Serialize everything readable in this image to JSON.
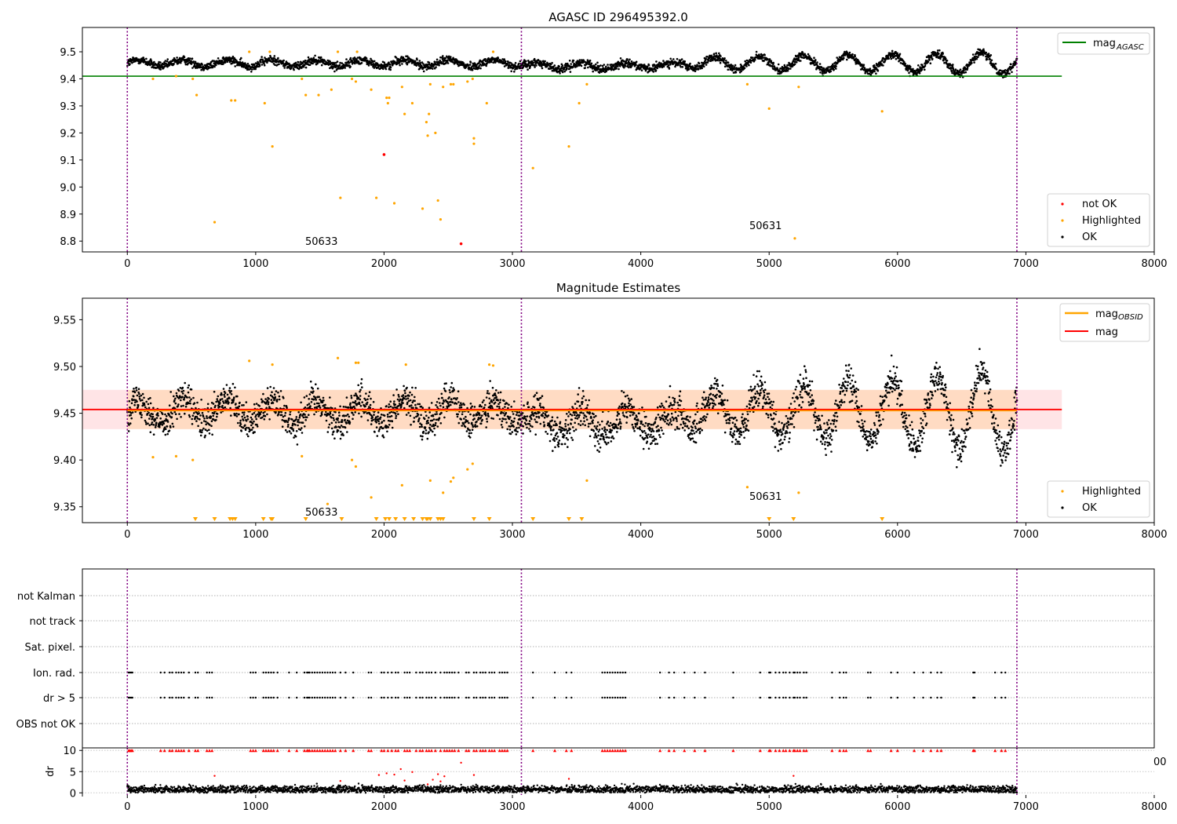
{
  "chart_data": [
    {
      "type": "scatter",
      "title": "AGASC ID 296495392.0",
      "xlim": [
        -350,
        8000
      ],
      "ylim": [
        8.76,
        9.59
      ],
      "x_ticks": [
        "0",
        "1000",
        "2000",
        "3000",
        "4000",
        "5000",
        "6000",
        "7000",
        "8000"
      ],
      "y_ticks": [
        "8.8",
        "8.9",
        "9.0",
        "9.1",
        "9.2",
        "9.3",
        "9.4",
        "9.5"
      ],
      "vlines_x": [
        0,
        3070,
        6930
      ],
      "hline": {
        "label_main": "mag",
        "label_sub": "AGASC",
        "y": 9.41,
        "x_range": [
          -350,
          7280
        ],
        "color": "#008000"
      },
      "series_labels": [
        "not OK",
        "Highlighted",
        "OK"
      ],
      "ok_band": {
        "x_range": [
          0,
          6930
        ],
        "lower": 9.42,
        "upper": 9.5
      },
      "highlighted": [
        [
          200,
          9.4
        ],
        [
          380,
          9.41
        ],
        [
          510,
          9.4
        ],
        [
          540,
          9.34
        ],
        [
          680,
          8.87
        ],
        [
          810,
          9.32
        ],
        [
          840,
          9.32
        ],
        [
          950,
          9.5
        ],
        [
          1070,
          9.31
        ],
        [
          1110,
          9.5
        ],
        [
          1130,
          9.15
        ],
        [
          1360,
          9.4
        ],
        [
          1390,
          9.34
        ],
        [
          1490,
          9.34
        ],
        [
          1590,
          9.36
        ],
        [
          1640,
          9.5
        ],
        [
          1660,
          8.96
        ],
        [
          1750,
          9.4
        ],
        [
          1780,
          9.39
        ],
        [
          1790,
          9.5
        ],
        [
          1900,
          9.36
        ],
        [
          1940,
          8.96
        ],
        [
          2020,
          9.33
        ],
        [
          2030,
          9.31
        ],
        [
          2040,
          9.33
        ],
        [
          2080,
          8.94
        ],
        [
          2140,
          9.37
        ],
        [
          2160,
          9.27
        ],
        [
          2220,
          9.31
        ],
        [
          2300,
          8.92
        ],
        [
          2330,
          9.24
        ],
        [
          2340,
          9.19
        ],
        [
          2350,
          9.27
        ],
        [
          2360,
          9.38
        ],
        [
          2400,
          9.2
        ],
        [
          2420,
          8.95
        ],
        [
          2440,
          8.88
        ],
        [
          2460,
          9.37
        ],
        [
          2520,
          9.38
        ],
        [
          2540,
          9.38
        ],
        [
          2650,
          9.39
        ],
        [
          2690,
          9.4
        ],
        [
          2700,
          9.16
        ],
        [
          2700,
          9.18
        ],
        [
          2800,
          9.31
        ],
        [
          2850,
          9.5
        ],
        [
          3160,
          9.07
        ],
        [
          3440,
          9.15
        ],
        [
          3520,
          9.31
        ],
        [
          3580,
          9.38
        ],
        [
          4830,
          9.38
        ],
        [
          5000,
          9.29
        ],
        [
          5200,
          8.81
        ],
        [
          5230,
          9.37
        ],
        [
          5880,
          9.28
        ]
      ],
      "not_ok": [
        [
          2000,
          9.12
        ],
        [
          2600,
          8.79
        ]
      ],
      "annotations": [
        {
          "text": "50633",
          "x": 1400,
          "y": 8.77
        },
        {
          "text": "50631",
          "x": 4850,
          "y": 8.83
        }
      ]
    },
    {
      "type": "scatter",
      "title": "Magnitude Estimates",
      "xlim": [
        -350,
        8000
      ],
      "ylim": [
        9.333,
        9.573
      ],
      "x_ticks": [
        "0",
        "1000",
        "2000",
        "3000",
        "4000",
        "5000",
        "6000",
        "7000",
        "8000"
      ],
      "y_ticks": [
        "9.35",
        "9.40",
        "9.45",
        "9.50",
        "9.55"
      ],
      "vlines_x": [
        0,
        3070,
        6930
      ],
      "mag_line": {
        "label": "mag",
        "y": 9.454,
        "x_range": [
          -350,
          7280
        ],
        "color": "#ff0000"
      },
      "obsid_line": {
        "label_main": "mag",
        "label_sub": "OBSID",
        "color": "#ffa500"
      },
      "band": {
        "lower": 9.433,
        "upper": 9.475,
        "x_range": [
          -350,
          7280
        ]
      },
      "series_labels": [
        "Highlighted",
        "OK"
      ],
      "highlighted": [
        [
          200,
          9.403
        ],
        [
          380,
          9.404
        ],
        [
          510,
          9.4
        ],
        [
          950,
          9.506
        ],
        [
          1130,
          9.502
        ],
        [
          1360,
          9.404
        ],
        [
          1560,
          9.353
        ],
        [
          1640,
          9.509
        ],
        [
          1750,
          9.4
        ],
        [
          1780,
          9.393
        ],
        [
          1780,
          9.504
        ],
        [
          1800,
          9.504
        ],
        [
          1900,
          9.36
        ],
        [
          2140,
          9.373
        ],
        [
          2170,
          9.502
        ],
        [
          2360,
          9.378
        ],
        [
          2460,
          9.365
        ],
        [
          2520,
          9.377
        ],
        [
          2540,
          9.381
        ],
        [
          2650,
          9.39
        ],
        [
          2690,
          9.396
        ],
        [
          2820,
          9.502
        ],
        [
          2850,
          9.501
        ],
        [
          3580,
          9.378
        ],
        [
          4830,
          9.371
        ],
        [
          5230,
          9.365
        ]
      ],
      "below_range_x": [
        530,
        680,
        800,
        820,
        840,
        1060,
        1120,
        1130,
        1390,
        1670,
        1940,
        2010,
        2040,
        2090,
        2160,
        2230,
        2300,
        2330,
        2340,
        2360,
        2420,
        2440,
        2460,
        2700,
        2820,
        3160,
        3440,
        3540,
        5000,
        5190,
        5880
      ],
      "annotations": [
        {
          "text": "50633",
          "x": 1400,
          "y": 9.34
        },
        {
          "text": "50631",
          "x": 4850,
          "y": 9.359
        }
      ]
    },
    {
      "type": "scatter",
      "xlim": [
        -350,
        8000
      ],
      "y_categories": [
        "not Kalman",
        "not track",
        "Sat. pixel.",
        "Ion. rad.",
        "dr > 5",
        "OBS not OK"
      ],
      "vlines_x": [
        0,
        3070,
        6930
      ],
      "flag_x": [
        10,
        20,
        30,
        40,
        260,
        290,
        330,
        350,
        380,
        400,
        420,
        440,
        480,
        530,
        550,
        620,
        640,
        660,
        960,
        980,
        1000,
        1060,
        1080,
        1100,
        1120,
        1140,
        1170,
        1260,
        1320,
        1380,
        1400,
        1410,
        1420,
        1440,
        1460,
        1480,
        1500,
        1520,
        1540,
        1560,
        1580,
        1600,
        1620,
        1660,
        1700,
        1760,
        1880,
        1900,
        1980,
        2000,
        2030,
        2060,
        2090,
        2110,
        2160,
        2180,
        2200,
        2250,
        2280,
        2300,
        2330,
        2350,
        2370,
        2400,
        2440,
        2470,
        2490,
        2510,
        2530,
        2550,
        2580,
        2640,
        2660,
        2700,
        2720,
        2750,
        2770,
        2790,
        2820,
        2840,
        2860,
        2900,
        2920,
        2940,
        2960,
        3160,
        3330,
        3420,
        3460,
        3700,
        3720,
        3740,
        3760,
        3780,
        3800,
        3820,
        3840,
        3860,
        3880,
        4150,
        4220,
        4260,
        4340,
        4420,
        4500,
        4720,
        4930,
        5000,
        5010,
        5050,
        5080,
        5110,
        5130,
        5160,
        5190,
        5200,
        5220,
        5240,
        5270,
        5290,
        5490,
        5550,
        5580,
        5600,
        5770,
        5790,
        5950,
        6000,
        6130,
        6200,
        6260,
        6310,
        6340,
        6590,
        6600,
        6760,
        6810,
        6840
      ],
      "dr_panel": {
        "ylabel": "dr",
        "y_ticks": [
          "0",
          "5",
          "10"
        ],
        "ylim": [
          -0.5,
          10.6
        ],
        "clip_value": 10,
        "right_tick_clipped": "00",
        "outliers": [
          [
            680,
            4.0
          ],
          [
            1660,
            2.8
          ],
          [
            1960,
            4.2
          ],
          [
            2020,
            4.6
          ],
          [
            2080,
            4.3
          ],
          [
            2130,
            5.6
          ],
          [
            2160,
            2.9
          ],
          [
            2220,
            4.9
          ],
          [
            2340,
            2.0
          ],
          [
            2380,
            3.1
          ],
          [
            2420,
            4.4
          ],
          [
            2440,
            2.7
          ],
          [
            2470,
            3.9
          ],
          [
            2600,
            7.1
          ],
          [
            2700,
            4.2
          ],
          [
            3440,
            3.3
          ],
          [
            5190,
            4.0
          ]
        ]
      }
    }
  ]
}
